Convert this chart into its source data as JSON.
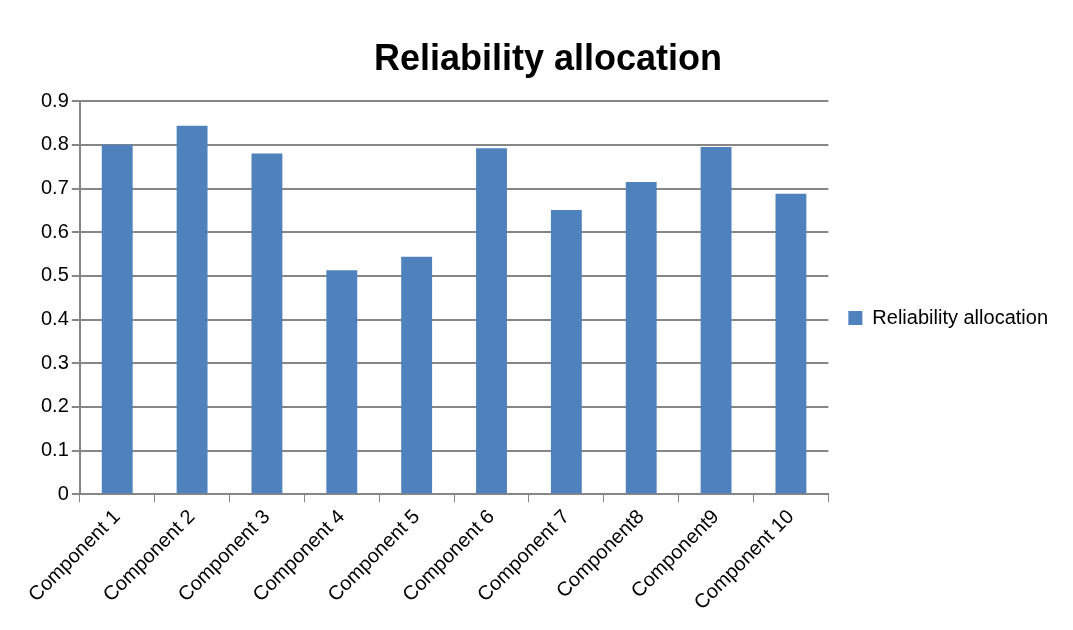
{
  "chart_data": {
    "type": "bar",
    "title": "Reliability allocation",
    "categories": [
      "Component 1",
      "Component 2",
      "Component 3",
      "Component 4",
      "Component 5",
      "Component 6",
      "Component 7",
      "Component8",
      "Component9",
      "Component 10"
    ],
    "series": [
      {
        "name": "Reliability allocation",
        "color": "#4f81bd",
        "values": [
          0.8,
          0.844,
          0.78,
          0.513,
          0.544,
          0.792,
          0.651,
          0.715,
          0.795,
          0.688
        ]
      }
    ],
    "ylim": [
      0,
      0.9
    ],
    "yticks": [
      0,
      0.1,
      0.2,
      0.3,
      0.4,
      0.5,
      0.6,
      0.7,
      0.8,
      0.9
    ],
    "grid": "y",
    "legend": "right"
  }
}
